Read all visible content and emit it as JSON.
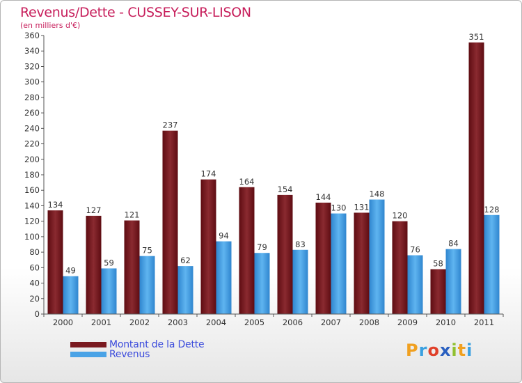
{
  "header": {
    "title": "Revenus/Dette - CUSSEY-SUR-LISON",
    "subtitle": "(en milliers d'€)"
  },
  "chart_data": {
    "type": "bar",
    "title": "Revenus/Dette - CUSSEY-SUR-LISON",
    "ylabel": "(en milliers d'€)",
    "xlabel": "",
    "categories": [
      "2000",
      "2001",
      "2002",
      "2003",
      "2004",
      "2005",
      "2006",
      "2007",
      "2008",
      "2009",
      "2010",
      "2011"
    ],
    "series": [
      {
        "name": "Montant de la Dette",
        "color": "#7a1a20",
        "values": [
          134,
          127,
          121,
          237,
          174,
          164,
          154,
          144,
          131,
          120,
          58,
          351
        ]
      },
      {
        "name": "Revenus",
        "color": "#4aa3e6",
        "values": [
          49,
          59,
          75,
          62,
          94,
          79,
          83,
          130,
          148,
          76,
          84,
          128
        ]
      }
    ],
    "ylim": [
      0,
      360
    ],
    "ytick_step": 20,
    "grid": false,
    "legend_position": "bottom-left"
  },
  "legend": {
    "items": [
      {
        "label": "Montant de la Dette",
        "color": "#7a1a20"
      },
      {
        "label": "Revenus",
        "color": "#4aa3e6"
      }
    ]
  },
  "logo": {
    "letters": [
      "P",
      "r",
      "o",
      "x",
      "i",
      "t",
      "i"
    ],
    "colors": [
      "#f0a020",
      "#3aa0e0",
      "#e0402a",
      "#2a60c0",
      "#90c030",
      "#f0a020",
      "#3aa0e0"
    ]
  }
}
